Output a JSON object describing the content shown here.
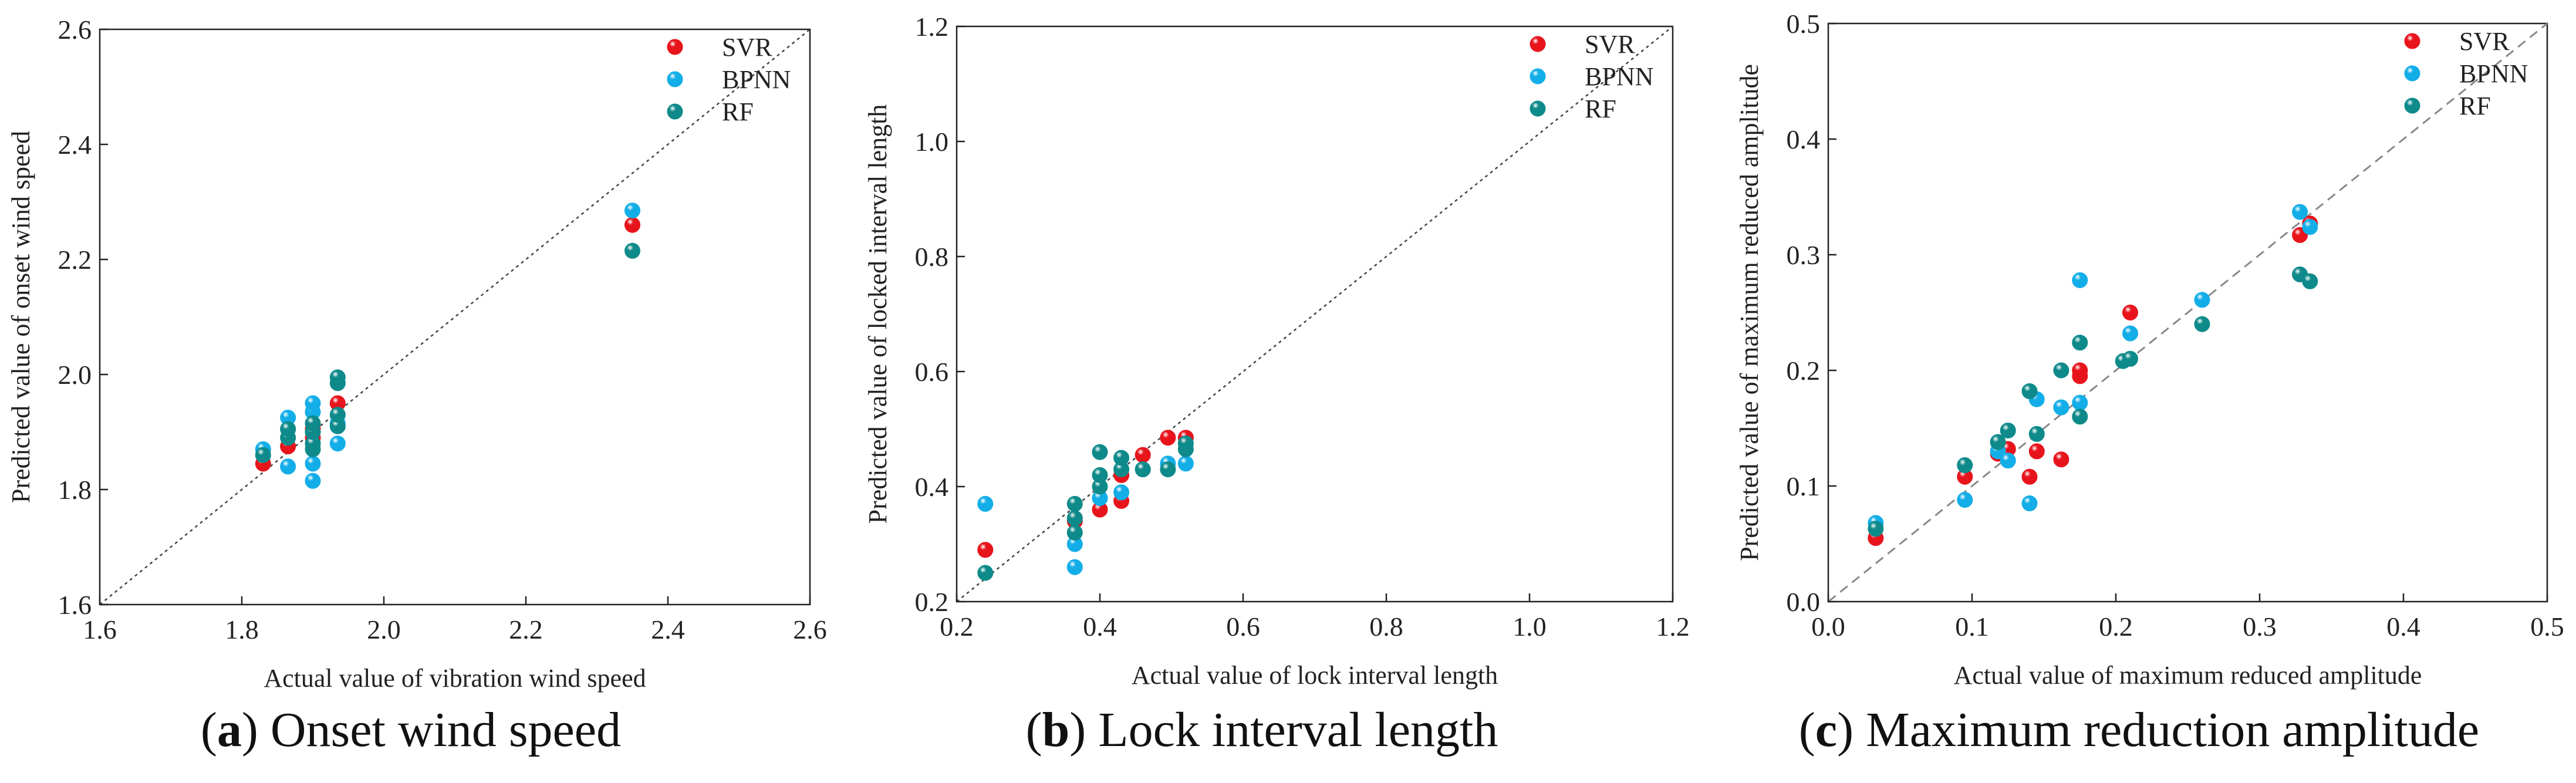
{
  "chart_data": [
    {
      "type": "scatter",
      "caption": {
        "letter": "a",
        "text": "Onset wind speed"
      },
      "xlabel": "Actual value of vibration wind speed",
      "ylabel": "Predicted value of onset wind speed",
      "xlim": [
        1.6,
        2.6
      ],
      "ylim": [
        1.6,
        2.6
      ],
      "xticks": [
        "1.6",
        "1.8",
        "2.0",
        "2.2",
        "2.4",
        "2.6"
      ],
      "yticks": [
        "1.6",
        "1.8",
        "2.0",
        "2.2",
        "2.4",
        "2.6"
      ],
      "diagonal": "y=x dotted",
      "legend_position": "top-right",
      "series": [
        {
          "name": "SVR",
          "color": "#e8141c",
          "points": [
            [
              1.83,
              1.845
            ],
            [
              1.865,
              1.875
            ],
            [
              1.9,
              1.89
            ],
            [
              1.9,
              1.905
            ],
            [
              1.935,
              1.95
            ],
            [
              2.35,
              2.26
            ]
          ]
        },
        {
          "name": "BPNN",
          "color": "#13aee8",
          "points": [
            [
              1.83,
              1.87
            ],
            [
              1.865,
              1.84
            ],
            [
              1.865,
              1.925
            ],
            [
              1.9,
              1.815
            ],
            [
              1.9,
              1.845
            ],
            [
              1.9,
              1.935
            ],
            [
              1.9,
              1.95
            ],
            [
              1.935,
              1.88
            ],
            [
              1.935,
              1.915
            ],
            [
              2.35,
              2.285
            ]
          ]
        },
        {
          "name": "RF",
          "color": "#0f8a8a",
          "points": [
            [
              1.83,
              1.86
            ],
            [
              1.865,
              1.89
            ],
            [
              1.865,
              1.905
            ],
            [
              1.9,
              1.87
            ],
            [
              1.9,
              1.88
            ],
            [
              1.9,
              1.9
            ],
            [
              1.9,
              1.915
            ],
            [
              1.935,
              1.91
            ],
            [
              1.935,
              1.93
            ],
            [
              1.935,
              1.985
            ],
            [
              1.935,
              1.995
            ],
            [
              2.35,
              2.215
            ]
          ]
        }
      ]
    },
    {
      "type": "scatter",
      "caption": {
        "letter": "b",
        "text": "Lock interval length"
      },
      "xlabel": "Actual value of lock interval length",
      "ylabel": "Predicted value of locked interval length",
      "xlim": [
        0.2,
        1.2
      ],
      "ylim": [
        0.2,
        1.2
      ],
      "xticks": [
        "0.2",
        "0.4",
        "0.6",
        "0.8",
        "1.0",
        "1.2"
      ],
      "yticks": [
        "0.2",
        "0.4",
        "0.6",
        "0.8",
        "1.0",
        "1.2"
      ],
      "diagonal": "y=x dotted",
      "legend_position": "top-right",
      "series": [
        {
          "name": "SVR",
          "color": "#e8141c",
          "points": [
            [
              0.24,
              0.29
            ],
            [
              0.365,
              0.34
            ],
            [
              0.4,
              0.36
            ],
            [
              0.43,
              0.375
            ],
            [
              0.43,
              0.42
            ],
            [
              0.46,
              0.455
            ],
            [
              0.495,
              0.485
            ],
            [
              0.52,
              0.485
            ]
          ]
        },
        {
          "name": "BPNN",
          "color": "#13aee8",
          "points": [
            [
              0.24,
              0.37
            ],
            [
              0.365,
              0.26
            ],
            [
              0.365,
              0.3
            ],
            [
              0.4,
              0.38
            ],
            [
              0.43,
              0.39
            ],
            [
              0.46,
              0.43
            ],
            [
              0.495,
              0.44
            ],
            [
              0.52,
              0.44
            ]
          ]
        },
        {
          "name": "RF",
          "color": "#0f8a8a",
          "points": [
            [
              0.24,
              0.25
            ],
            [
              0.365,
              0.32
            ],
            [
              0.365,
              0.345
            ],
            [
              0.365,
              0.37
            ],
            [
              0.4,
              0.4
            ],
            [
              0.4,
              0.42
            ],
            [
              0.4,
              0.46
            ],
            [
              0.43,
              0.43
            ],
            [
              0.43,
              0.45
            ],
            [
              0.46,
              0.43
            ],
            [
              0.495,
              0.43
            ],
            [
              0.52,
              0.465
            ],
            [
              0.52,
              0.475
            ]
          ]
        }
      ]
    },
    {
      "type": "scatter",
      "caption": {
        "letter": "c",
        "text": "Maximum reduction amplitude"
      },
      "xlabel": "Actual value of maximum reduced amplitude",
      "ylabel": "Predicted value of maximum reduced amplitude",
      "xlim": [
        0.0,
        0.5
      ],
      "ylim": [
        0.0,
        0.5
      ],
      "xticks": [
        "0.0",
        "0.1",
        "0.2",
        "0.3",
        "0.4",
        "0.5"
      ],
      "yticks": [
        "0.0",
        "0.1",
        "0.2",
        "0.3",
        "0.4",
        "0.5"
      ],
      "diagonal": "y=x dashed",
      "legend_position": "top-right",
      "series": [
        {
          "name": "SVR",
          "color": "#e8141c",
          "points": [
            [
              0.033,
              0.055
            ],
            [
              0.095,
              0.108
            ],
            [
              0.118,
              0.128
            ],
            [
              0.125,
              0.132
            ],
            [
              0.14,
              0.108
            ],
            [
              0.145,
              0.13
            ],
            [
              0.162,
              0.123
            ],
            [
              0.175,
              0.195
            ],
            [
              0.175,
              0.2
            ],
            [
              0.21,
              0.25
            ],
            [
              0.328,
              0.317
            ],
            [
              0.335,
              0.327
            ]
          ]
        },
        {
          "name": "BPNN",
          "color": "#13aee8",
          "points": [
            [
              0.033,
              0.068
            ],
            [
              0.095,
              0.088
            ],
            [
              0.118,
              0.13
            ],
            [
              0.125,
              0.122
            ],
            [
              0.14,
              0.085
            ],
            [
              0.145,
              0.175
            ],
            [
              0.162,
              0.168
            ],
            [
              0.175,
              0.172
            ],
            [
              0.175,
              0.278
            ],
            [
              0.21,
              0.232
            ],
            [
              0.26,
              0.261
            ],
            [
              0.328,
              0.337
            ],
            [
              0.335,
              0.324
            ]
          ]
        },
        {
          "name": "RF",
          "color": "#0f8a8a",
          "points": [
            [
              0.033,
              0.063
            ],
            [
              0.095,
              0.118
            ],
            [
              0.118,
              0.138
            ],
            [
              0.125,
              0.148
            ],
            [
              0.14,
              0.182
            ],
            [
              0.145,
              0.145
            ],
            [
              0.162,
              0.2
            ],
            [
              0.175,
              0.16
            ],
            [
              0.175,
              0.224
            ],
            [
              0.205,
              0.208
            ],
            [
              0.21,
              0.21
            ],
            [
              0.26,
              0.24
            ],
            [
              0.328,
              0.283
            ],
            [
              0.335,
              0.277
            ]
          ]
        }
      ]
    }
  ]
}
